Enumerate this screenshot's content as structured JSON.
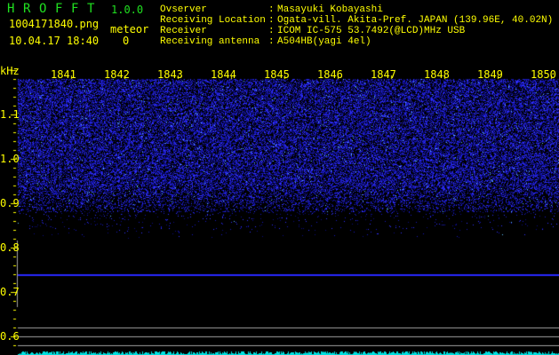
{
  "header": {
    "app_letters": [
      "H",
      "R",
      "O",
      "F",
      "F",
      "T"
    ],
    "version": "1.0.0",
    "filename": "1004171840.png",
    "datetime": "10.04.17 18:40",
    "meteor_label": "meteor",
    "meteor_count": "0",
    "info": [
      {
        "label": "Ovserver",
        "value": "Masayuki Kobayashi"
      },
      {
        "label": "Receiving Location",
        "value": "Ogata-vill. Akita-Pref. JAPAN (139.96E, 40.02N)"
      },
      {
        "label": "Receiver",
        "value": "ICOM IC-575 53.7492(@LCD)MHz USB"
      },
      {
        "label": "Receiving antenna",
        "value": "A504HB(yagi 4el)"
      }
    ]
  },
  "spectrogram": {
    "y_unit": "kHz",
    "y_ticks": [
      "1.1",
      "1.0",
      "0.9",
      "0.8",
      "0.7",
      "0.6"
    ],
    "x_ticks": [
      "1841",
      "1842",
      "1843",
      "1844",
      "1845",
      "1846",
      "1847",
      "1848",
      "1849",
      "1850"
    ],
    "colors": {
      "noise": "#2020ff",
      "carrier": "#2828ff",
      "text": "#ffff00",
      "level": "#00e0e0",
      "marker": "#a0a0a0"
    }
  }
}
